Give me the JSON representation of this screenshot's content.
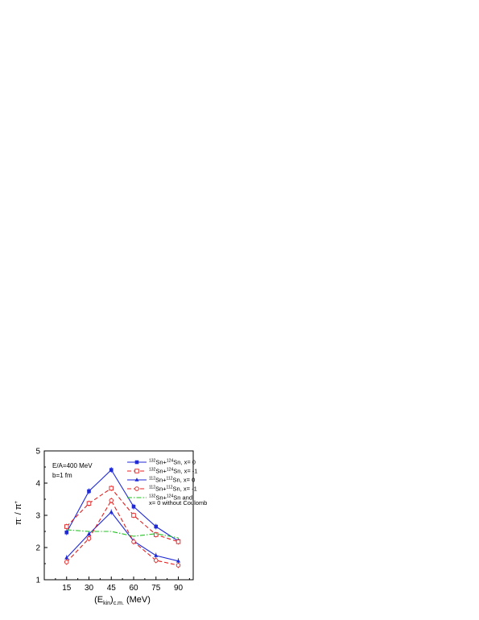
{
  "chart_data": {
    "type": "line",
    "x": [
      15,
      30,
      45,
      60,
      75,
      90
    ],
    "xticks": [
      "15",
      "30",
      "45",
      "60",
      "75",
      "90"
    ],
    "xlim": [
      0,
      100
    ],
    "yticks": [
      "1",
      "2",
      "3",
      "4",
      "5"
    ],
    "ylim": [
      1,
      5
    ],
    "xlabel": {
      "main": "(E",
      "sub": "kin",
      "sub2": "c.m.",
      "tail": " (MeV)"
    },
    "ylabel": {
      "a": "π",
      "a_sup": "-",
      "sep": " / ",
      "b": "π",
      "b_sup": "+"
    },
    "annotations": [
      "E/A=400 MeV",
      "b=1 fm"
    ],
    "legend_position": "top-right",
    "series": [
      {
        "key": "s1",
        "name_pre": "",
        "name_sup": "132",
        "name_mid": "Sn+",
        "name_sup2": "124",
        "name_post": "Sn, x= 0",
        "color": "#1f2ad6",
        "dash": "",
        "marker": "square-filled",
        "values": [
          2.47,
          3.75,
          4.41,
          3.27,
          2.65,
          2.2
        ]
      },
      {
        "key": "s2",
        "name_pre": "",
        "name_sup": "132",
        "name_mid": "Sn+",
        "name_sup2": "124",
        "name_post": "Sn, x= -1",
        "color": "#e02020",
        "dash": "5,3",
        "marker": "square-open",
        "values": [
          2.65,
          3.37,
          3.84,
          3.0,
          2.4,
          2.18
        ]
      },
      {
        "key": "s3",
        "name_pre": "",
        "name_sup": "112",
        "name_mid": "Sn+",
        "name_sup2": "112",
        "name_post": "Sn, x= 0",
        "color": "#1f2ad6",
        "dash": "",
        "marker": "triangle-filled",
        "values": [
          1.68,
          2.42,
          3.1,
          2.2,
          1.75,
          1.58
        ]
      },
      {
        "key": "s4",
        "name_pre": "",
        "name_sup": "112",
        "name_mid": "Sn+",
        "name_sup2": "112",
        "name_post": "Sn, x= -1",
        "color": "#e02020",
        "dash": "5,3",
        "marker": "circle-open",
        "values": [
          1.55,
          2.28,
          3.46,
          2.18,
          1.6,
          1.45
        ]
      },
      {
        "key": "s5",
        "name_pre": "",
        "name_sup": "132",
        "name_mid": "Sn+",
        "name_sup2": "124",
        "name_post": "Sn and",
        "name_line2": "x= 0 without Coulomb",
        "color": "#22c222",
        "dash": "6,2,1.5,2",
        "marker": "none",
        "values": [
          2.55,
          2.5,
          2.5,
          2.35,
          2.43,
          2.3
        ]
      }
    ]
  }
}
